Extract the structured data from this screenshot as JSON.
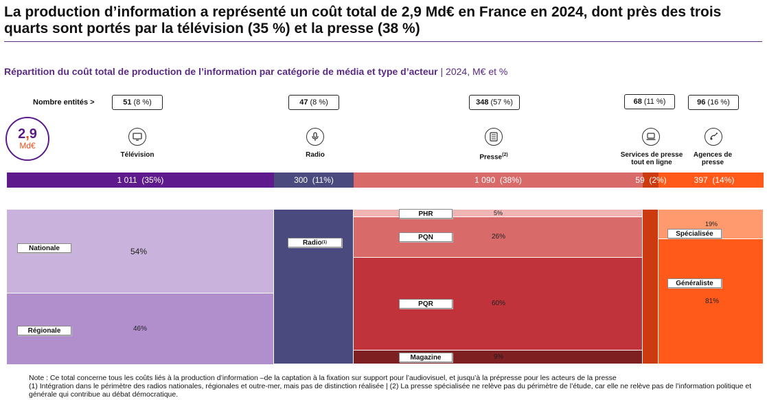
{
  "headline": "La production d’information a représenté un coût total de 2,9 Md€ en France en 2024, dont près des trois quarts sont portés par la télévision (35 %) et la presse (38 %)",
  "subtitle": {
    "main": "Répartition du coût total de production de l’information par catégorie de média et type d’acteur",
    "unit": " | 2024, M€ et %"
  },
  "count_row_label": "Nombre entités >",
  "total": {
    "int": "2",
    "comma": ",",
    "dec": "9",
    "unit": "Md€"
  },
  "icons": {
    "television": "tv-icon",
    "radio": "microphone-icon",
    "presse": "newspaper-icon",
    "online": "laptop-icon",
    "agences": "satellite-icon"
  },
  "chart_data": {
    "type": "mekko",
    "categories": [
      {
        "key": "television",
        "label": "Télévision",
        "sup": "",
        "entities": "51",
        "entities_pct": "(8 %)",
        "value_label": "1 011",
        "share_label": "(35%)",
        "value": 1011,
        "share": 35,
        "color": "#5e1a8c",
        "segments": [
          {
            "label": "Nationale",
            "pct_label": "54%",
            "value": 54,
            "color": "#c9b3dc"
          },
          {
            "label": "Régionale",
            "pct_label": "46%",
            "value": 46,
            "color": "#b08fcc"
          }
        ]
      },
      {
        "key": "radio",
        "label": "Radio",
        "sup": "",
        "entities": "47",
        "entities_pct": "(8 %)",
        "value_label": "300",
        "share_label": "(11%)",
        "value": 300,
        "share": 11,
        "color": "#4a4a7e",
        "segments": [
          {
            "label": "Radio",
            "sup": "(1)",
            "pct_label": "",
            "value": 100,
            "color": "#4a4a7e"
          }
        ]
      },
      {
        "key": "presse",
        "label": "Presse",
        "sup": "(2)",
        "entities": "348",
        "entities_pct": "(57 %)",
        "value_label": "1 090",
        "share_label": "(38%)",
        "value": 1090,
        "share": 38,
        "color": "#d96a6a",
        "segments": [
          {
            "label": "PHR",
            "pct_label": "5%",
            "value": 5,
            "color": "#f0b4b4"
          },
          {
            "label": "PQN",
            "pct_label": "26%",
            "value": 26,
            "color": "#d96a6a"
          },
          {
            "label": "PQR",
            "pct_label": "60%",
            "value": 60,
            "color": "#c0333a"
          },
          {
            "label": "Magazine",
            "pct_label": "9%",
            "value": 9,
            "color": "#7e1f22"
          }
        ]
      },
      {
        "key": "online",
        "label": "Services de presse tout en ligne",
        "sup": "",
        "entities": "68",
        "entities_pct": "(11 %)",
        "value_label": "59",
        "share_label": "(2%)",
        "value": 59,
        "share": 2,
        "color": "#cc3a10",
        "segments": [
          {
            "label": "",
            "pct_label": "",
            "value": 100,
            "color": "#cc3a10"
          }
        ]
      },
      {
        "key": "agences",
        "label": "Agences de presse",
        "sup": "",
        "entities": "96",
        "entities_pct": "(16 %)",
        "value_label": "397",
        "share_label": "(14%)",
        "value": 397,
        "share": 14,
        "color": "#ff5a1a",
        "segments": [
          {
            "label": "Spécialisée",
            "pct_label": "19%",
            "value": 19,
            "color": "#ff9a6e"
          },
          {
            "label": "Généraliste",
            "pct_label": "81%",
            "value": 81,
            "color": "#ff5a1a"
          }
        ]
      }
    ]
  },
  "note": {
    "line1": "Note : Ce total concerne tous les coûts liés à la production d’information –de la captation à la fixation sur support pour l’audiovisuel, et jusqu’à la prépresse pour les acteurs de la presse",
    "line2": "(1) Intégration dans le périmètre des radios nationales, régionales et outre-mer, mais pas de distinction réalisée | (2) La presse spécialisée ne relève pas du périmètre de l’étude, car elle ne relève pas de l’information politique et générale qui contribue au débat démocratique."
  }
}
